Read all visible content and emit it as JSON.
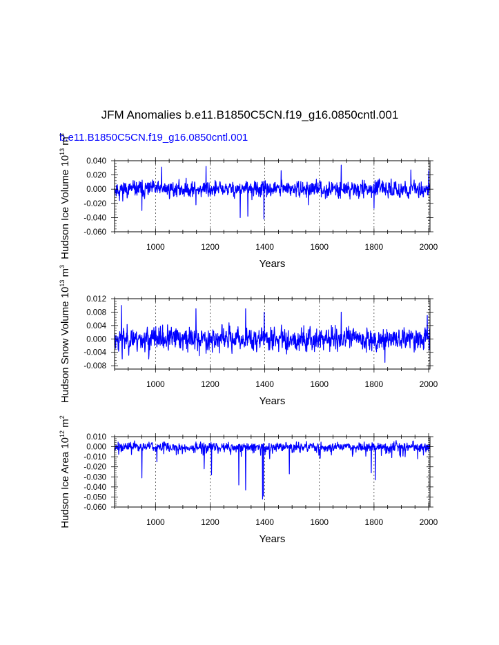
{
  "title": "JFM Anomalies b.e11.B1850C5CN.f19_g16.0850cntl.001",
  "subtitle": "b.e11.B1850C5CN.f19_g16.0850cntl.001",
  "colors": {
    "series": "#0000ff",
    "subtitle": "#0000ff",
    "text": "#000000",
    "grid": "#000000"
  },
  "chart_data": [
    {
      "type": "line",
      "title": "JFM Anomalies b.e11.B1850C5CN.f19_g16.0850cntl.001",
      "subtitle": "b.e11.B1850C5CN.f19_g16.0850cntl.001",
      "ylabel": "Hudson Ice Volume 10",
      "ylabel_exp": "13",
      "ylabel_unit": " m",
      "ylabel_unit_exp": "3",
      "xlabel": "Years",
      "xlim": [
        850,
        2005
      ],
      "ylim": [
        -0.06,
        0.04
      ],
      "xticks": [
        1000,
        1200,
        1400,
        1600,
        1800,
        2000
      ],
      "yticks": [
        -0.06,
        -0.04,
        -0.02,
        0.0,
        0.02,
        0.04
      ],
      "ytick_labels": [
        "-0.060",
        "-0.040",
        "-0.020",
        "0.000",
        "0.020",
        "0.040"
      ],
      "grid": "x-dashed",
      "noise": {
        "seed": 11,
        "sigma": 0.009,
        "pos_max": 0.034,
        "neg_min": -0.028
      },
      "series": [
        {
          "name": "Hudson Ice Volume",
          "highlights": [
            {
              "x": 868,
              "y": -0.016
            },
            {
              "x": 950,
              "y": -0.03
            },
            {
              "x": 1022,
              "y": 0.031
            },
            {
              "x": 1148,
              "y": -0.022
            },
            {
              "x": 1185,
              "y": 0.032
            },
            {
              "x": 1310,
              "y": -0.04
            },
            {
              "x": 1338,
              "y": -0.038
            },
            {
              "x": 1397,
              "y": -0.042
            },
            {
              "x": 1460,
              "y": 0.026
            },
            {
              "x": 1560,
              "y": -0.022
            },
            {
              "x": 1680,
              "y": 0.034
            },
            {
              "x": 1800,
              "y": -0.027
            },
            {
              "x": 1935,
              "y": 0.027
            },
            {
              "x": 2000,
              "y": 0.026
            }
          ]
        }
      ]
    },
    {
      "type": "line",
      "ylabel": "Hudson Snow Volume 10",
      "ylabel_exp": "13",
      "ylabel_unit": " m",
      "ylabel_unit_exp": "3",
      "xlabel": "Years",
      "xlim": [
        850,
        2005
      ],
      "ylim": [
        -0.009,
        0.012
      ],
      "xticks": [
        1000,
        1200,
        1400,
        1600,
        1800,
        2000
      ],
      "yticks": [
        -0.008,
        -0.004,
        0.0,
        0.004,
        0.008,
        0.012
      ],
      "ytick_labels": [
        "-0.008",
        "-0.004",
        "0.000",
        "0.004",
        "0.008",
        "0.012"
      ],
      "grid": "x-dashed",
      "noise": {
        "seed": 23,
        "sigma": 0.0028,
        "pos_max": 0.0095,
        "neg_min": -0.0065
      },
      "series": [
        {
          "name": "Hudson Snow Volume",
          "highlights": [
            {
              "x": 875,
              "y": 0.01
            },
            {
              "x": 878,
              "y": -0.006
            },
            {
              "x": 975,
              "y": -0.006
            },
            {
              "x": 1148,
              "y": 0.009
            },
            {
              "x": 1160,
              "y": -0.005
            },
            {
              "x": 1330,
              "y": 0.009
            },
            {
              "x": 1398,
              "y": 0.008
            },
            {
              "x": 1680,
              "y": 0.008
            },
            {
              "x": 1840,
              "y": -0.007
            },
            {
              "x": 1995,
              "y": 0.007
            }
          ]
        }
      ]
    },
    {
      "type": "line",
      "ylabel": "Hudson Ice Area 10",
      "ylabel_exp": "12",
      "ylabel_unit": " m",
      "ylabel_unit_exp": "2",
      "xlabel": "Years",
      "xlim": [
        850,
        2005
      ],
      "ylim": [
        -0.06,
        0.01
      ],
      "xticks": [
        1000,
        1200,
        1400,
        1600,
        1800,
        2000
      ],
      "yticks": [
        -0.06,
        -0.05,
        -0.04,
        -0.03,
        -0.02,
        -0.01,
        0.0,
        0.01
      ],
      "ytick_labels": [
        "-0.060",
        "-0.050",
        "-0.040",
        "-0.030",
        "-0.020",
        "-0.010",
        "0.000",
        "0.010"
      ],
      "grid": "x-dashed",
      "noise": {
        "seed": 37,
        "sigma": 0.0035,
        "pos_max": 0.0065,
        "neg_min": -0.012,
        "skew": "negative"
      },
      "series": [
        {
          "name": "Hudson Ice Area",
          "highlights": [
            {
              "x": 950,
              "y": -0.031
            },
            {
              "x": 1005,
              "y": -0.015
            },
            {
              "x": 1178,
              "y": -0.022
            },
            {
              "x": 1205,
              "y": -0.028
            },
            {
              "x": 1305,
              "y": -0.038
            },
            {
              "x": 1330,
              "y": -0.043
            },
            {
              "x": 1392,
              "y": -0.052
            },
            {
              "x": 1395,
              "y": -0.049
            },
            {
              "x": 1490,
              "y": -0.027
            },
            {
              "x": 1790,
              "y": -0.026
            },
            {
              "x": 1805,
              "y": -0.033
            },
            {
              "x": 1960,
              "y": -0.012
            }
          ]
        }
      ]
    }
  ]
}
